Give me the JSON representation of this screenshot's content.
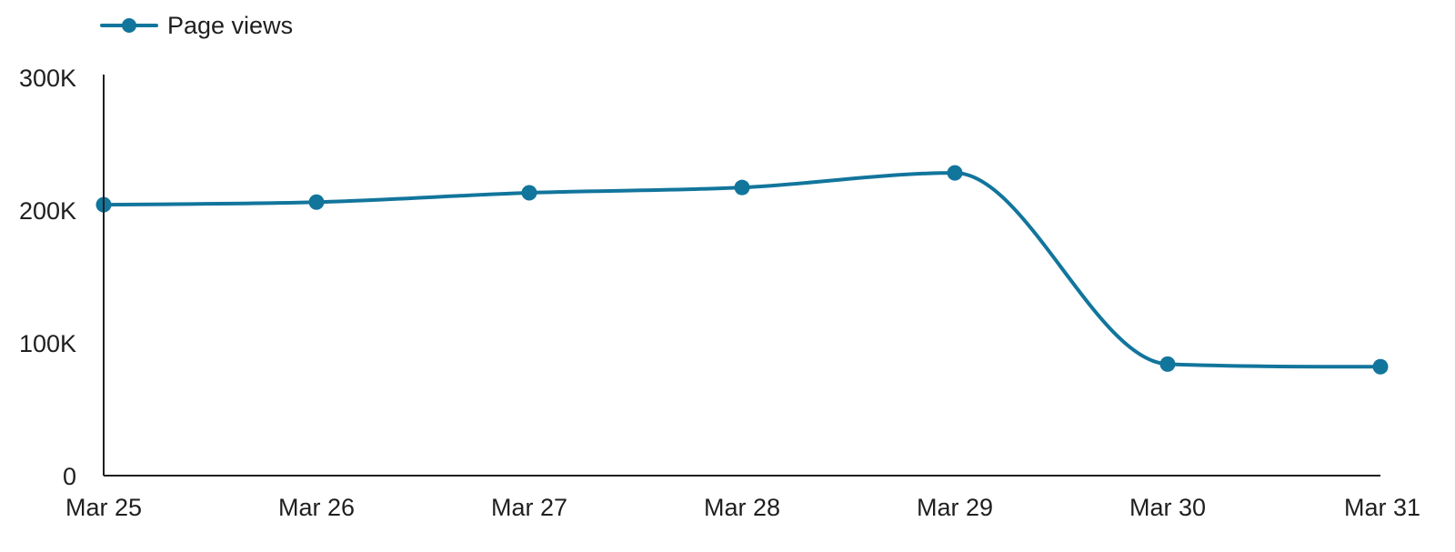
{
  "chart_data": {
    "type": "line",
    "categories": [
      "Mar 25",
      "Mar 26",
      "Mar 27",
      "Mar 28",
      "Mar 29",
      "Mar 30",
      "Mar 31"
    ],
    "series": [
      {
        "name": "Page views",
        "values": [
          204000,
          206000,
          213000,
          217000,
          228000,
          84000,
          82000
        ]
      }
    ],
    "yticks": [
      0,
      100000,
      200000,
      300000
    ],
    "ytick_labels": [
      "0",
      "100K",
      "200K",
      "300K"
    ],
    "ylim": [
      0,
      300000
    ],
    "grid": false,
    "smooth": true,
    "legend_position": "top-left",
    "colors": {
      "series": "#12759c",
      "axis": "#1f1f1f",
      "text": "#1f1f1f"
    }
  }
}
